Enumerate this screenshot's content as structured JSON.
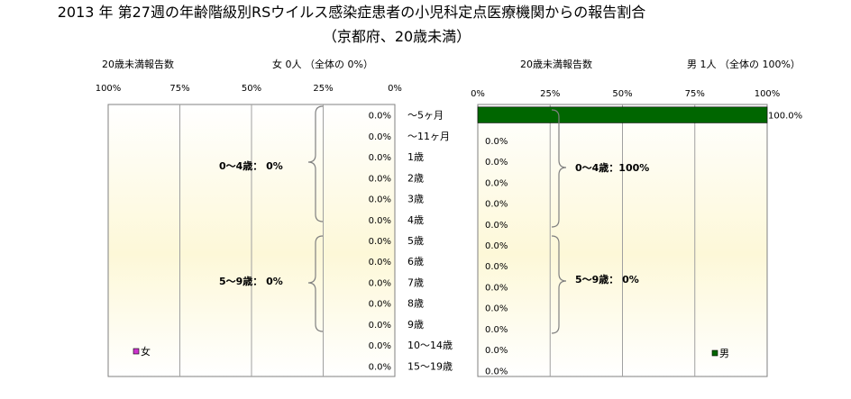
{
  "title": "2013 年 第27週の年齢階級別RSウイルス感染症患者の小児科定点医療機関からの報告割合",
  "subtitle": "（京都府、20歳未満）",
  "female": {
    "count_label": "20歳未満報告数",
    "summary": "女  0人 （全体の  0%）",
    "legend": "女",
    "group_0_4": "0～4歳：  0%",
    "group_5_9": "5～9歳：  0%",
    "color": "#cc33cc"
  },
  "male": {
    "count_label": "20歳未満報告数",
    "summary": "男  1人 （全体の  100%）",
    "legend": "男",
    "group_0_4": "0～4歳：100%",
    "group_5_9": "5～9歳：  0%",
    "color": "#006600"
  },
  "chart_data": {
    "type": "bar",
    "categories": [
      "～5ヶ月",
      "～11ヶ月",
      "1歳",
      "2歳",
      "3歳",
      "4歳",
      "5歳",
      "6歳",
      "7歳",
      "8歳",
      "9歳",
      "10～14歳",
      "15～19歳"
    ],
    "series": [
      {
        "name": "女",
        "values": [
          0,
          0,
          0,
          0,
          0,
          0,
          0,
          0,
          0,
          0,
          0,
          0,
          0
        ]
      },
      {
        "name": "男",
        "values": [
          100,
          0,
          0,
          0,
          0,
          0,
          0,
          0,
          0,
          0,
          0,
          0,
          0
        ]
      }
    ],
    "value_labels": {
      "female": [
        "0.0%",
        "0.0%",
        "0.0%",
        "0.0%",
        "0.0%",
        "0.0%",
        "0.0%",
        "0.0%",
        "0.0%",
        "0.0%",
        "0.0%",
        "0.0%",
        "0.0%"
      ],
      "male": [
        "100.0%",
        "0.0%",
        "0.0%",
        "0.0%",
        "0.0%",
        "0.0%",
        "0.0%",
        "0.0%",
        "0.0%",
        "0.0%",
        "0.0%",
        "0.0%",
        "0.0%"
      ]
    },
    "female_ticks": [
      "100%",
      "75%",
      "50%",
      "25%",
      "0%"
    ],
    "male_ticks": [
      "0%",
      "25%",
      "50%",
      "75%",
      "100%"
    ],
    "xlim": [
      0,
      100
    ],
    "grid": true
  }
}
